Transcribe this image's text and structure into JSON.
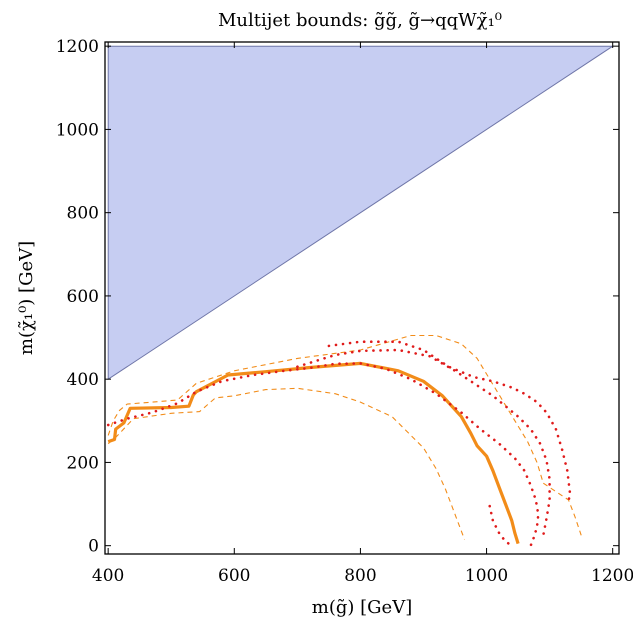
{
  "chart_data": {
    "type": "line",
    "title": "Multijet bounds: g̃g̃, g̃→qqWχ̃₁⁰",
    "xlabel": "m(g̃) [GeV]",
    "ylabel": "m(χ̃₁⁰) [GeV]",
    "xlim": [
      395,
      1210
    ],
    "ylim": [
      -20,
      1210
    ],
    "xticks": [
      "400",
      "600",
      "800",
      "1000",
      "1200"
    ],
    "yticks": [
      "0",
      "200",
      "400",
      "600",
      "800",
      "1000",
      "1200"
    ],
    "grid": false,
    "legend": "none",
    "colors": {
      "region_fill": "#c6cdf2",
      "region_edge": "#6f76a8",
      "orange": "#f28c19",
      "red": "#e01b1b"
    },
    "series": [
      {
        "style": "filled-region",
        "x": [
          400,
          400,
          1200,
          400
        ],
        "y": [
          400,
          1200,
          1200,
          400
        ]
      },
      {
        "style": "orange-solid",
        "x": [
          400,
          410,
          412,
          425,
          435,
          500,
          528,
          535,
          540,
          555,
          590,
          650,
          720,
          800,
          860,
          900,
          930,
          960,
          975,
          985,
          1000,
          1010,
          1020,
          1030,
          1040,
          1045,
          1050
        ],
        "y": [
          250,
          255,
          280,
          295,
          330,
          332,
          335,
          362,
          370,
          382,
          410,
          418,
          428,
          438,
          420,
          395,
          360,
          310,
          270,
          240,
          215,
          180,
          140,
          100,
          60,
          30,
          5
        ]
      },
      {
        "style": "orange-dashed",
        "x": [
          400,
          408,
          418,
          430,
          470,
          510,
          540,
          600,
          700,
          800,
          880,
          920,
          960,
          985,
          1005,
          1025,
          1045,
          1065,
          1080,
          1090
        ],
        "y": [
          265,
          300,
          325,
          340,
          345,
          350,
          390,
          420,
          450,
          470,
          505,
          505,
          485,
          450,
          400,
          350,
          300,
          250,
          200,
          150
        ]
      },
      {
        "style": "orange-dashed",
        "x": [
          1090,
          1110,
          1130,
          1140,
          1150
        ],
        "y": [
          150,
          130,
          110,
          70,
          25
        ]
      },
      {
        "style": "orange-dashed",
        "x": [
          400,
          412,
          440,
          500,
          545,
          570,
          600,
          650,
          700,
          760,
          800,
          850,
          900,
          920,
          935,
          945,
          955,
          965
        ],
        "y": [
          245,
          260,
          305,
          318,
          322,
          355,
          360,
          375,
          378,
          365,
          345,
          310,
          235,
          185,
          135,
          95,
          55,
          15
        ]
      },
      {
        "style": "red-dotted",
        "x": [
          400,
          430,
          470,
          510,
          540,
          580,
          630,
          680,
          720,
          760,
          800,
          840,
          880,
          920,
          960,
          990,
          1020,
          1045,
          1060,
          1070,
          1078,
          1082,
          1080,
          1075,
          1070
        ],
        "y": [
          290,
          305,
          320,
          342,
          370,
          395,
          410,
          420,
          427,
          437,
          438,
          425,
          400,
          365,
          320,
          280,
          245,
          210,
          180,
          145,
          110,
          75,
          45,
          20,
          0
        ]
      },
      {
        "style": "red-dotted",
        "x": [
          700,
          760,
          800,
          860,
          910,
          950,
          990,
          1010,
          1030,
          1050,
          1070,
          1085,
          1095,
          1100,
          1100,
          1095,
          1090
        ],
        "y": [
          430,
          458,
          468,
          470,
          455,
          420,
          380,
          360,
          335,
          310,
          280,
          245,
          205,
          160,
          110,
          65,
          25
        ]
      },
      {
        "style": "red-dotted",
        "x": [
          750,
          800,
          860,
          900,
          940,
          980,
          1010,
          1040,
          1060,
          1080,
          1095,
          1110,
          1120,
          1128,
          1132,
          1130
        ],
        "y": [
          480,
          490,
          490,
          470,
          430,
          405,
          395,
          380,
          365,
          345,
          320,
          280,
          230,
          180,
          130,
          100
        ]
      },
      {
        "style": "red-dotted",
        "x": [
          1005,
          1010,
          1020,
          1030,
          1040
        ],
        "y": [
          95,
          60,
          30,
          10,
          0
        ]
      }
    ]
  }
}
